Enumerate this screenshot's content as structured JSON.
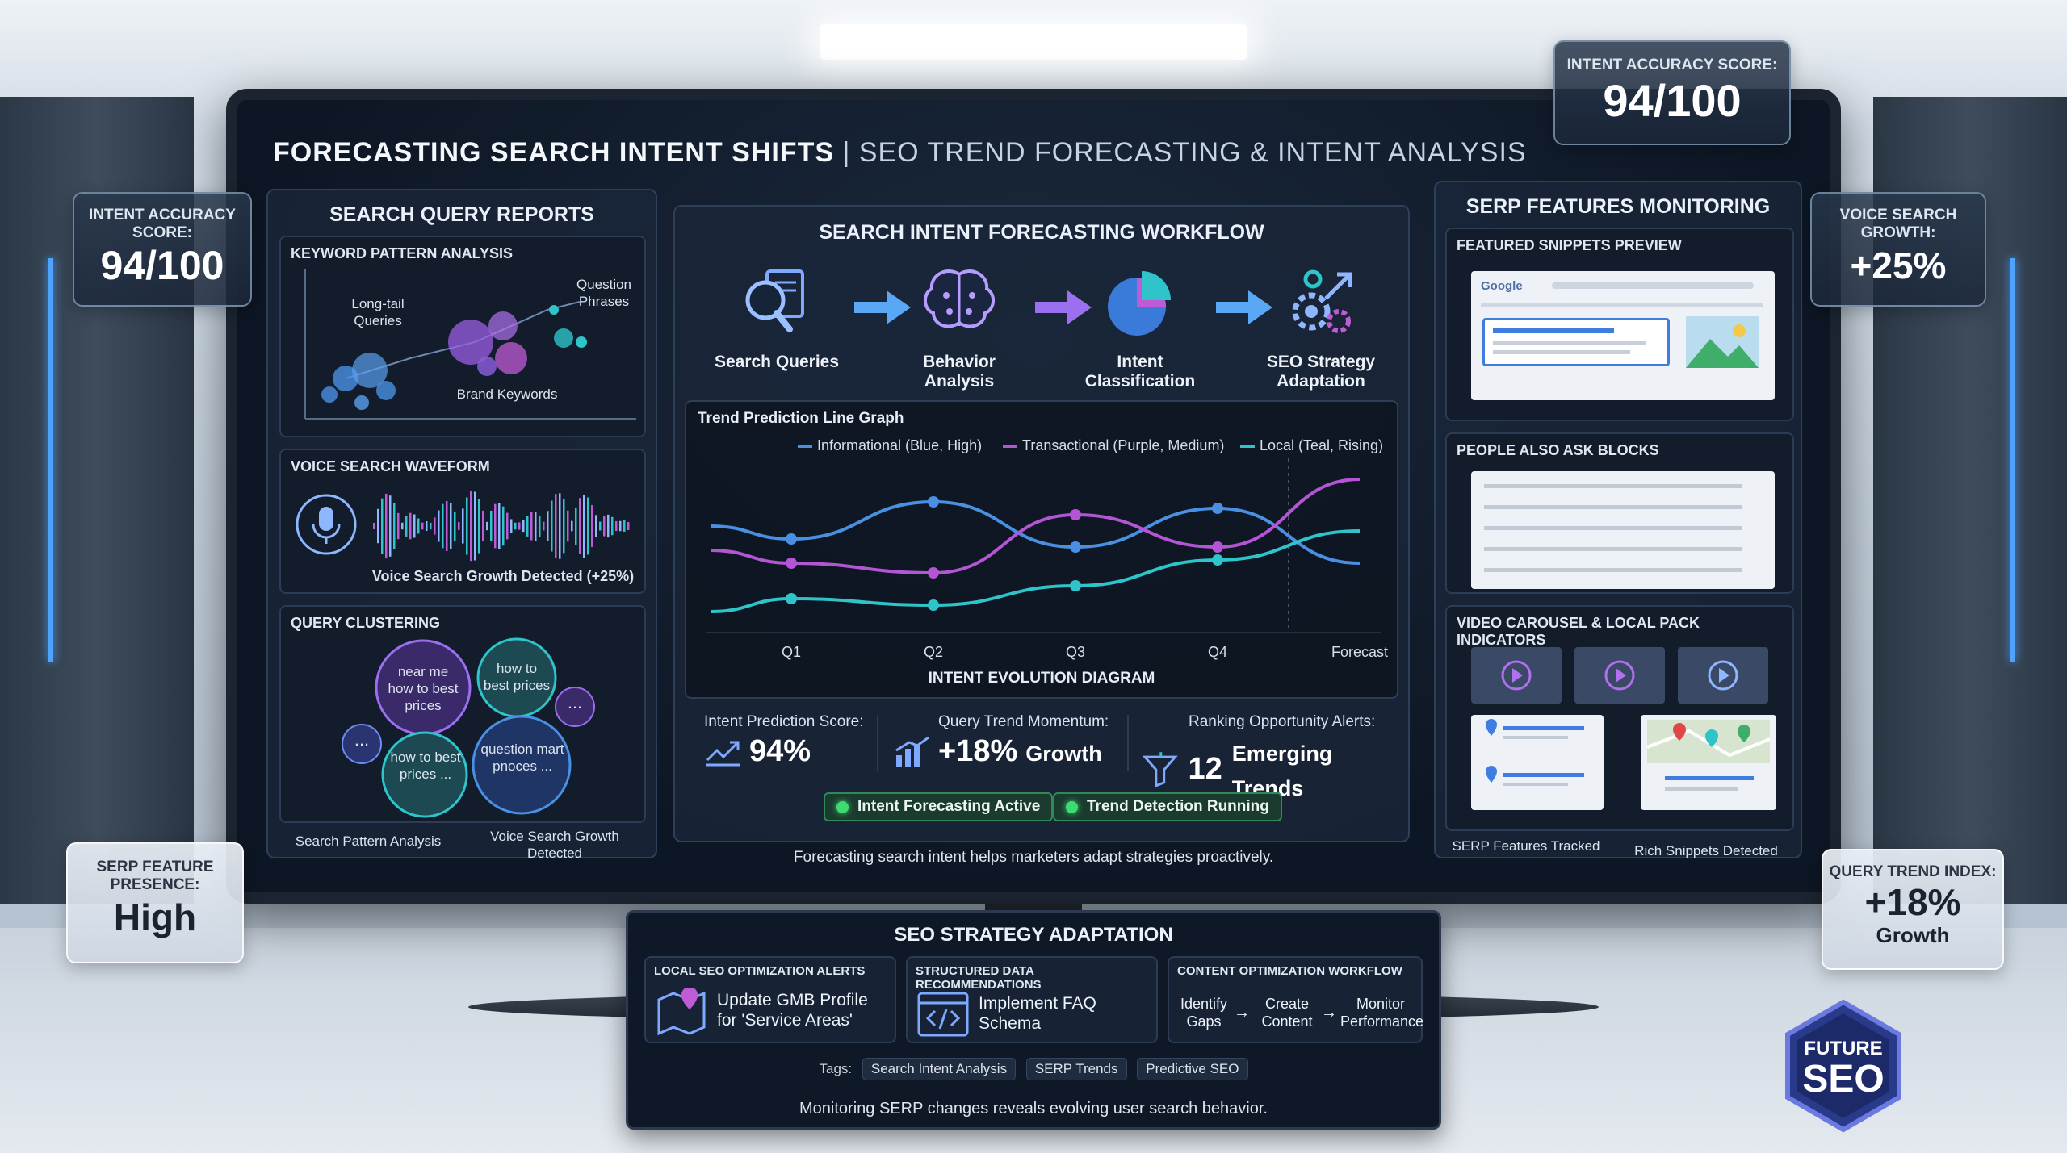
{
  "main_title": "Forecasting Search Intent Shifts",
  "main_subtitle": "| SEO Trend Forecasting & Intent Analysis",
  "floating": {
    "top_accuracy": {
      "label": "Intent Accuracy Score:",
      "value": "94/100"
    },
    "left_accuracy": {
      "label": "Intent Accuracy Score:",
      "value": "94/100"
    },
    "voice_growth": {
      "label": "Voice Search Growth:",
      "value": "+25%"
    },
    "serp_presence": {
      "label": "SERP Feature Presence:",
      "value": "High"
    },
    "query_trend": {
      "label": "Query Trend Index:",
      "value": "+18%",
      "growth": "Growth"
    }
  },
  "left": {
    "title": "Search Query Reports",
    "keyword": {
      "title": "Keyword Pattern Analysis",
      "labels": [
        "Long-tail Queries",
        "Question Phrases",
        "Brand Keywords"
      ]
    },
    "voice": {
      "title": "Voice Search Waveform",
      "caption": "Voice Search Growth Detected (+25%)"
    },
    "cluster": {
      "title": "Query Clustering",
      "bubbles": [
        "near me how to best prices",
        "how to best prices",
        "how to best prices ...",
        "question mart pnoces ..."
      ],
      "more": "..."
    },
    "footer": [
      "Search Pattern Analysis",
      "Voice Search Growth Detected"
    ]
  },
  "center": {
    "title": "Search Intent Forecasting Workflow",
    "steps": [
      {
        "label": "Search Queries",
        "icon": "search-document-icon"
      },
      {
        "label": "Behavior Analysis",
        "icon": "brain-circuit-icon"
      },
      {
        "label": "Intent Classification",
        "icon": "pie-chart-icon"
      },
      {
        "label": "SEO Strategy Adaptation",
        "icon": "gears-arrow-icon"
      }
    ],
    "graph": {
      "title": "Trend Prediction Line Graph",
      "caption": "Intent Evolution Diagram",
      "legend": [
        "Informational (Blue, High)",
        "Transactional (Purple, Medium)",
        "Local (Teal, Rising)"
      ],
      "ticks": [
        "Q1",
        "Q2",
        "Q3",
        "Q4",
        "Forecast"
      ]
    },
    "metrics": [
      {
        "label": "Intent Prediction Score:",
        "value": "94%",
        "suffix": ""
      },
      {
        "label": "Query Trend Momentum:",
        "value": "+18%",
        "suffix": "Growth"
      },
      {
        "label": "Ranking Opportunity Alerts:",
        "value": "12",
        "suffix": "Emerging Trends"
      }
    ],
    "badges": [
      "Intent Forecasting Active",
      "Trend Detection Running"
    ],
    "footer": "Forecasting search intent helps marketers adapt strategies proactively."
  },
  "chart_data": {
    "type": "line",
    "title": "Trend Prediction Line Graph",
    "xlabel": "Intent Evolution Diagram",
    "categories": [
      "Q1",
      "Q2",
      "Q3",
      "Q4",
      "Forecast"
    ],
    "ylim": [
      0,
      100
    ],
    "series": [
      {
        "name": "Informational (Blue, High)",
        "color": "#4a90e2",
        "values": [
          55,
          78,
          50,
          74,
          40
        ]
      },
      {
        "name": "Transactional (Purple, Medium)",
        "color": "#b455d6",
        "values": [
          40,
          34,
          70,
          50,
          92
        ]
      },
      {
        "name": "Local (Teal, Rising)",
        "color": "#2ec4c9",
        "values": [
          18,
          14,
          26,
          42,
          60
        ]
      }
    ]
  },
  "right": {
    "title": "SERP Features Monitoring",
    "snippets": {
      "title": "Featured Snippets Preview",
      "brand": "Google"
    },
    "paa": {
      "title": "People Also Ask Blocks"
    },
    "video": {
      "title": "Video Carousel & Local Pack Indicators"
    },
    "footer": [
      "SERP Features Tracked",
      "Rich Snippets Detected"
    ]
  },
  "strategy": {
    "title": "SEO Strategy Adaptation",
    "cols": [
      {
        "head": "Local SEO Optimization Alerts",
        "body": "Update GMB Profile for 'Service Areas'",
        "icon": "map-pin-icon"
      },
      {
        "head": "Structured Data Recommendations",
        "body": "Implement FAQ Schema",
        "icon": "code-icon"
      },
      {
        "head": "Content Optimization Workflow",
        "steps": [
          "Identify Gaps",
          "Create Content",
          "Monitor Performance"
        ]
      }
    ],
    "tags_label": "Tags:",
    "tags": [
      "Search Intent Analysis",
      "SERP Trends",
      "Predictive SEO"
    ],
    "footer": "Monitoring SERP changes reveals evolving user search behavior."
  },
  "logo": {
    "line1": "Future",
    "line2": "SEO"
  }
}
